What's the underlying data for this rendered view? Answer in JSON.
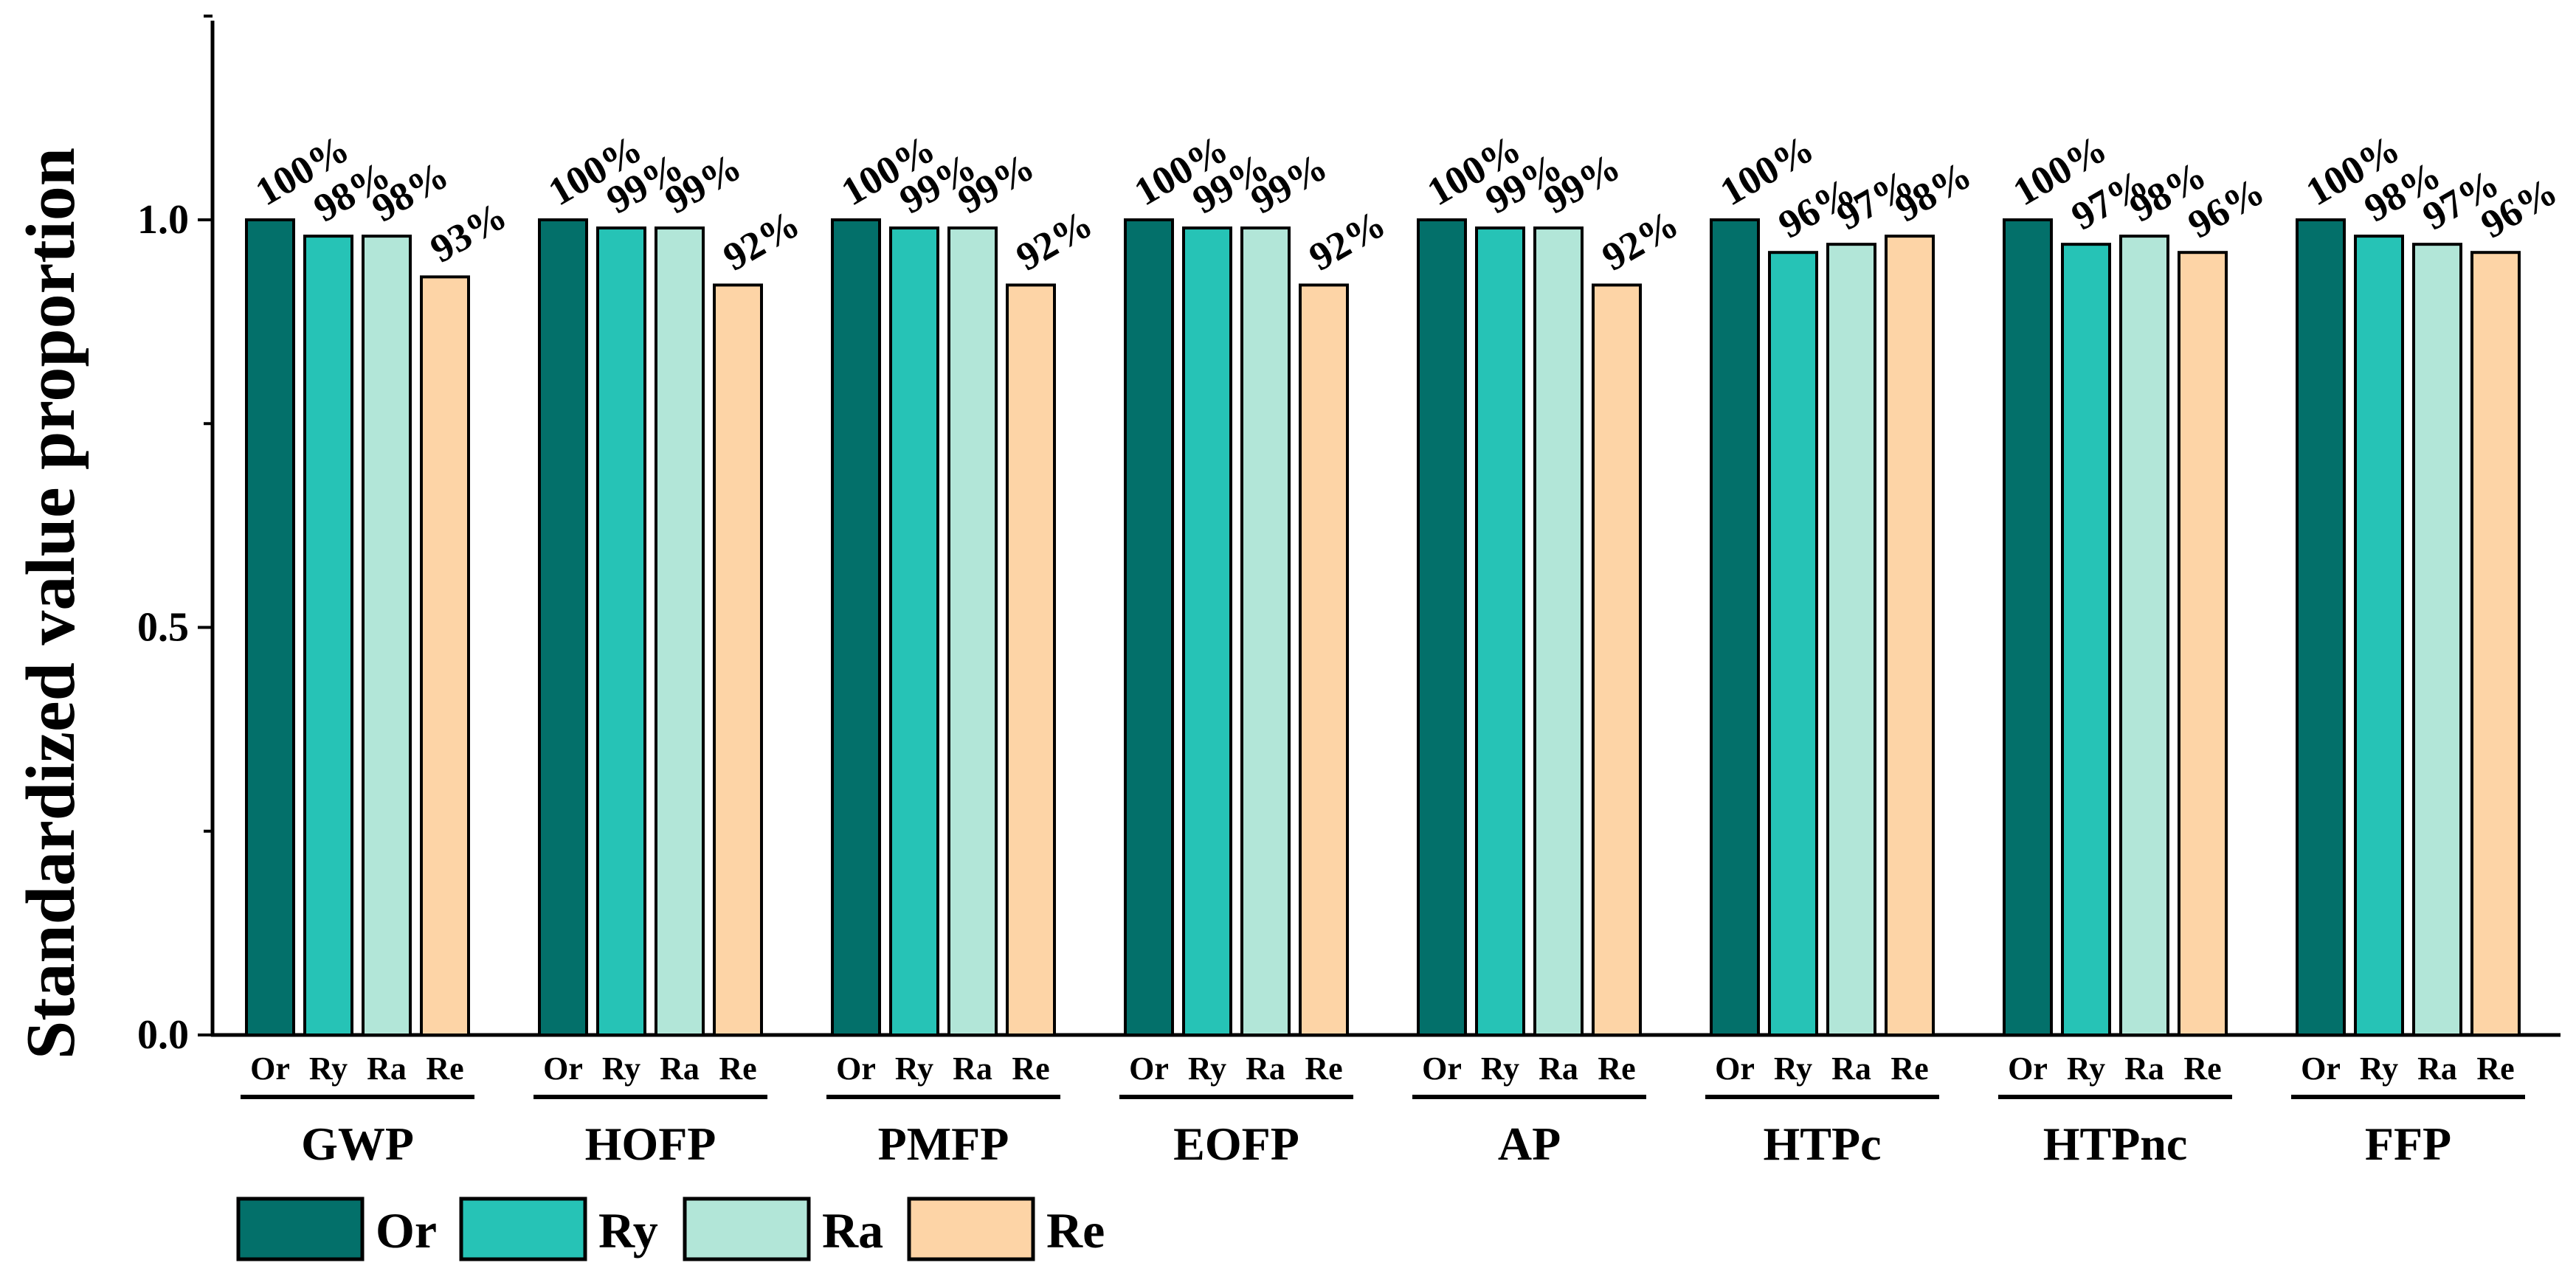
{
  "chart_data": {
    "type": "bar",
    "title": "",
    "xlabel": "",
    "ylabel": "Standardized value proportion",
    "ylim": [
      0,
      1.25
    ],
    "yticks": [
      "0.0",
      "0.5",
      "1.0"
    ],
    "grid": false,
    "legend_position": "bottom-left",
    "groups": [
      "GWP",
      "HOFP",
      "PMFP",
      "EOFP",
      "AP",
      "HTPc",
      "HTPnc",
      "FFP"
    ],
    "sub_labels": [
      "Or",
      "Ry",
      "Ra",
      "Re"
    ],
    "series": [
      {
        "name": "Or",
        "color": "#03706A",
        "values": [
          1.0,
          1.0,
          1.0,
          1.0,
          1.0,
          1.0,
          1.0,
          1.0
        ],
        "labels": [
          "100%",
          "100%",
          "100%",
          "100%",
          "100%",
          "100%",
          "100%",
          "100%"
        ]
      },
      {
        "name": "Ry",
        "color": "#26C3B6",
        "values": [
          0.98,
          0.99,
          0.99,
          0.99,
          0.99,
          0.96,
          0.97,
          0.98
        ],
        "labels": [
          "98%",
          "99%",
          "99%",
          "99%",
          "99%",
          "96%",
          "97%",
          "98%"
        ]
      },
      {
        "name": "Ra",
        "color": "#B2E6D8",
        "values": [
          0.98,
          0.99,
          0.99,
          0.99,
          0.99,
          0.97,
          0.98,
          0.97
        ],
        "labels": [
          "98%",
          "99%",
          "99%",
          "99%",
          "99%",
          "97%",
          "98%",
          "97%"
        ]
      },
      {
        "name": "Re",
        "color": "#FDD4A6",
        "values": [
          0.93,
          0.92,
          0.92,
          0.92,
          0.92,
          0.98,
          0.96,
          0.96
        ],
        "labels": [
          "93%",
          "92%",
          "92%",
          "92%",
          "92%",
          "98%",
          "96%",
          "96%"
        ]
      }
    ]
  }
}
